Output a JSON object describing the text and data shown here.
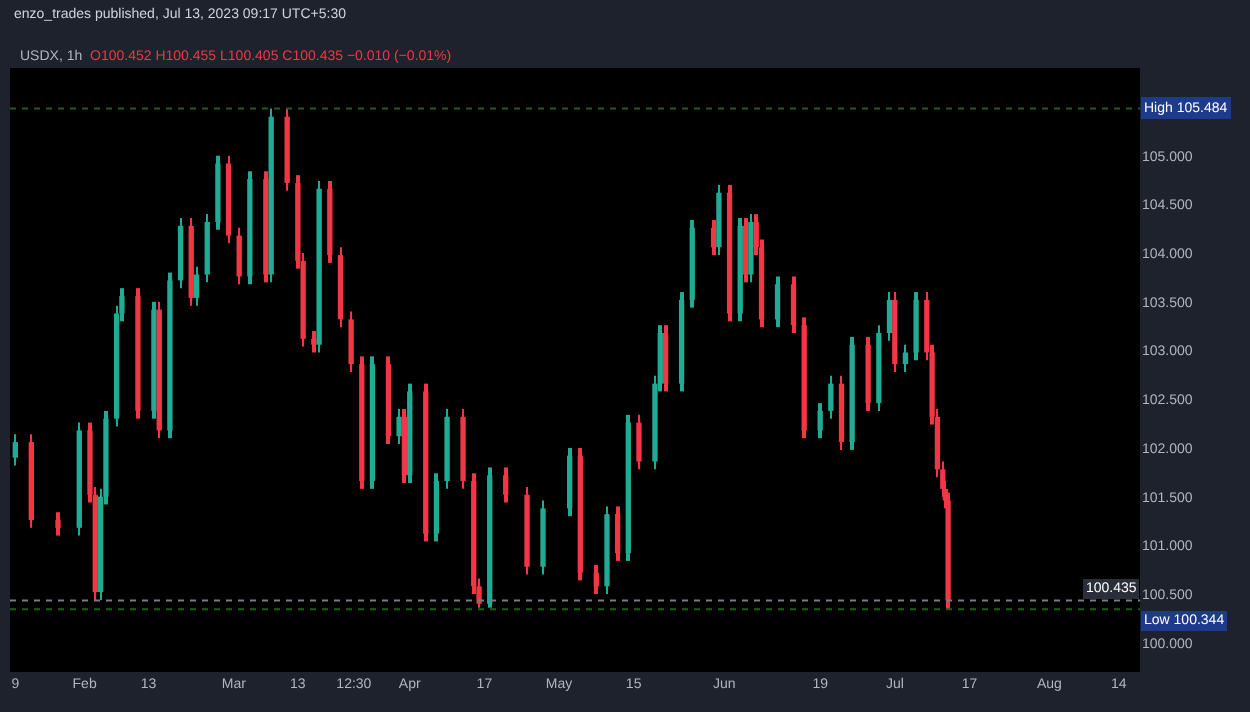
{
  "chart_data": {
    "type": "candlestick",
    "title": "USDX, 1h",
    "subtitle": "O100.452 H100.455 L100.405 C100.435 −0.010 (−0.01%)",
    "annotations": [
      "enzo_trades published, Jul 13, 2023 09:17 UTC+5:30"
    ],
    "x": [
      "2023-01-19",
      "2023-01-22",
      "2023-01-27",
      "2023-01-31",
      "2023-02-02",
      "2023-02-03",
      "2023-02-04",
      "2023-02-05",
      "2023-02-07",
      "2023-02-08",
      "2023-02-11",
      "2023-02-14",
      "2023-02-15",
      "2023-02-17",
      "2023-02-19",
      "2023-02-21",
      "2023-02-22",
      "2023-02-24",
      "2023-02-26",
      "2023-02-28",
      "2023-03-02",
      "2023-03-04",
      "2023-03-07",
      "2023-03-08",
      "2023-03-11",
      "2023-03-13",
      "2023-03-14",
      "2023-03-16",
      "2023-03-17",
      "2023-03-19",
      "2023-03-21",
      "2023-03-23",
      "2023-03-25",
      "2023-03-27",
      "2023-03-30",
      "2023-04-01",
      "2023-04-02",
      "2023-04-03",
      "2023-04-06",
      "2023-04-08",
      "2023-04-10",
      "2023-04-13",
      "2023-04-15",
      "2023-04-16",
      "2023-04-18",
      "2023-04-21",
      "2023-04-25",
      "2023-04-28",
      "2023-05-03",
      "2023-05-05",
      "2023-05-08",
      "2023-05-10",
      "2023-05-12",
      "2023-05-14",
      "2023-05-16",
      "2023-05-19",
      "2023-05-20",
      "2023-05-21",
      "2023-05-24",
      "2023-05-26",
      "2023-05-30",
      "2023-05-31",
      "2023-06-02",
      "2023-06-04",
      "2023-06-05",
      "2023-06-06",
      "2023-06-07",
      "2023-06-08",
      "2023-06-11",
      "2023-06-14",
      "2023-06-16",
      "2023-06-19",
      "2023-06-21",
      "2023-06-23",
      "2023-06-25",
      "2023-06-28",
      "2023-06-30",
      "2023-07-02",
      "2023-07-03",
      "2023-07-05",
      "2023-07-07",
      "2023-07-09",
      "2023-07-10",
      "2023-07-11",
      "2023-07-12",
      "2023-07-12T12:00",
      "2023-07-13"
    ],
    "ohlc": [
      [
        101.9,
        102.14,
        101.82,
        102.06
      ],
      [
        102.06,
        102.14,
        101.18,
        101.26
      ],
      [
        101.26,
        101.34,
        101.1,
        101.18
      ],
      [
        101.18,
        102.26,
        101.1,
        102.18
      ],
      [
        102.18,
        102.26,
        101.44,
        101.52
      ],
      [
        101.52,
        101.6,
        100.44,
        100.52
      ],
      [
        100.52,
        101.58,
        100.44,
        101.5
      ],
      [
        101.5,
        102.38,
        101.42,
        102.3
      ],
      [
        102.3,
        103.46,
        102.22,
        103.38
      ],
      [
        103.38,
        103.64,
        103.3,
        103.56
      ],
      [
        103.56,
        103.64,
        102.3,
        102.38
      ],
      [
        102.38,
        103.5,
        102.3,
        103.42
      ],
      [
        103.42,
        103.5,
        102.1,
        102.18
      ],
      [
        102.18,
        103.8,
        102.1,
        103.72
      ],
      [
        103.72,
        104.36,
        103.64,
        104.28
      ],
      [
        104.28,
        104.36,
        103.46,
        103.54
      ],
      [
        103.54,
        103.86,
        103.46,
        103.78
      ],
      [
        103.78,
        104.4,
        103.7,
        104.32
      ],
      [
        104.32,
        105.0,
        104.24,
        104.92
      ],
      [
        104.92,
        105.0,
        104.1,
        104.18
      ],
      [
        104.18,
        104.26,
        103.68,
        103.76
      ],
      [
        103.76,
        104.84,
        103.68,
        104.76
      ],
      [
        104.76,
        104.84,
        103.7,
        103.78
      ],
      [
        103.78,
        105.484,
        103.7,
        105.4
      ],
      [
        105.4,
        105.48,
        104.64,
        104.72
      ],
      [
        104.72,
        104.8,
        103.84,
        103.92
      ],
      [
        103.92,
        104.0,
        103.04,
        103.12
      ],
      [
        103.12,
        103.2,
        102.98,
        103.06
      ],
      [
        103.06,
        104.74,
        102.98,
        104.66
      ],
      [
        104.66,
        104.74,
        103.9,
        103.98
      ],
      [
        103.98,
        104.06,
        103.24,
        103.32
      ],
      [
        103.32,
        103.4,
        102.78,
        102.86
      ],
      [
        102.86,
        102.94,
        101.58,
        101.66
      ],
      [
        101.66,
        102.94,
        101.58,
        102.86
      ],
      [
        102.86,
        102.94,
        102.04,
        102.12
      ],
      [
        102.12,
        102.4,
        102.04,
        102.32
      ],
      [
        102.32,
        102.4,
        101.64,
        101.72
      ],
      [
        101.72,
        102.66,
        101.64,
        102.58
      ],
      [
        102.58,
        102.66,
        101.04,
        101.12
      ],
      [
        101.12,
        101.74,
        101.04,
        101.66
      ],
      [
        101.66,
        102.4,
        101.58,
        102.32
      ],
      [
        102.32,
        102.4,
        101.58,
        101.66
      ],
      [
        101.66,
        101.74,
        100.5,
        100.58
      ],
      [
        100.58,
        100.66,
        100.36,
        100.4
      ],
      [
        100.4,
        101.8,
        100.36,
        101.72
      ],
      [
        101.72,
        101.8,
        101.44,
        101.52
      ],
      [
        101.52,
        101.6,
        100.7,
        100.78
      ],
      [
        100.78,
        101.46,
        100.7,
        101.38
      ],
      [
        101.38,
        102.0,
        101.3,
        101.92
      ],
      [
        101.92,
        102.0,
        100.64,
        100.72
      ],
      [
        100.72,
        100.8,
        100.5,
        100.58
      ],
      [
        100.58,
        101.4,
        100.5,
        101.32
      ],
      [
        101.32,
        101.4,
        100.84,
        100.92
      ],
      [
        100.92,
        102.34,
        100.84,
        102.26
      ],
      [
        102.26,
        102.34,
        101.78,
        101.86
      ],
      [
        101.86,
        102.74,
        101.78,
        102.66
      ],
      [
        102.66,
        103.26,
        102.58,
        103.18
      ],
      [
        103.18,
        103.26,
        102.58,
        102.66
      ],
      [
        102.66,
        103.6,
        102.58,
        103.52
      ],
      [
        103.52,
        104.34,
        103.44,
        104.26
      ],
      [
        104.26,
        104.34,
        103.98,
        104.06
      ],
      [
        104.06,
        104.7,
        103.98,
        104.62
      ],
      [
        104.62,
        104.7,
        103.3,
        103.38
      ],
      [
        103.38,
        104.36,
        103.3,
        104.28
      ],
      [
        104.28,
        104.36,
        103.7,
        103.78
      ],
      [
        103.78,
        104.4,
        103.7,
        104.32
      ],
      [
        104.32,
        104.4,
        103.98,
        104.06
      ],
      [
        104.06,
        104.14,
        103.24,
        103.32
      ],
      [
        103.32,
        103.76,
        103.24,
        103.68
      ],
      [
        103.68,
        103.76,
        103.18,
        103.26
      ],
      [
        103.26,
        103.34,
        102.1,
        102.18
      ],
      [
        102.18,
        102.46,
        102.1,
        102.38
      ],
      [
        102.38,
        102.74,
        102.3,
        102.66
      ],
      [
        102.66,
        102.74,
        101.98,
        102.06
      ],
      [
        102.06,
        103.14,
        101.98,
        103.06
      ],
      [
        103.06,
        103.14,
        102.38,
        102.46
      ],
      [
        102.46,
        103.26,
        102.38,
        103.18
      ],
      [
        103.18,
        103.6,
        103.1,
        103.52
      ],
      [
        103.52,
        103.6,
        102.78,
        102.86
      ],
      [
        102.86,
        103.06,
        102.78,
        102.98
      ],
      [
        102.98,
        103.6,
        102.9,
        103.52
      ],
      [
        103.52,
        103.6,
        102.9,
        102.98
      ],
      [
        102.98,
        103.06,
        102.24,
        102.32
      ],
      [
        102.32,
        102.4,
        101.7,
        101.78
      ],
      [
        101.78,
        101.86,
        101.5,
        101.58
      ],
      [
        101.58,
        101.66,
        101.38,
        101.46
      ],
      [
        101.46,
        101.54,
        100.344,
        100.435
      ]
    ],
    "xlim": [
      "2023-01-18",
      "2023-08-18"
    ],
    "xticks": [
      {
        "value": "2023-01-19",
        "label": "9"
      },
      {
        "value": "2023-02-01",
        "label": "Feb"
      },
      {
        "value": "2023-02-13",
        "label": "13"
      },
      {
        "value": "2023-03-01",
        "label": "Mar"
      },
      {
        "value": "2023-03-13",
        "label": "13"
      },
      {
        "value": "2023-03-23T12:30",
        "label": "12:30"
      },
      {
        "value": "2023-04-03",
        "label": "Apr"
      },
      {
        "value": "2023-04-17",
        "label": "17"
      },
      {
        "value": "2023-05-01",
        "label": "May"
      },
      {
        "value": "2023-05-15",
        "label": "15"
      },
      {
        "value": "2023-06-01",
        "label": "Jun"
      },
      {
        "value": "2023-06-19",
        "label": "19"
      },
      {
        "value": "2023-07-03",
        "label": "Jul"
      },
      {
        "value": "2023-07-17",
        "label": "17"
      },
      {
        "value": "2023-08-01",
        "label": "Aug"
      },
      {
        "value": "2023-08-14",
        "label": "14"
      }
    ],
    "ylim": [
      99.7,
      105.9
    ],
    "yticks": [
      {
        "value": 100,
        "label": "100.000"
      },
      {
        "value": 100.5,
        "label": "100.500"
      },
      {
        "value": 101,
        "label": "101.000"
      },
      {
        "value": 101.5,
        "label": "101.500"
      },
      {
        "value": 102,
        "label": "102.000"
      },
      {
        "value": 102.5,
        "label": "102.500"
      },
      {
        "value": 103,
        "label": "103.000"
      },
      {
        "value": 103.5,
        "label": "103.500"
      },
      {
        "value": 104,
        "label": "104.000"
      },
      {
        "value": 104.5,
        "label": "104.500"
      },
      {
        "value": 105,
        "label": "105.000"
      }
    ],
    "ref_lines": [
      {
        "axis": "y",
        "value": 105.484,
        "label": "High 105.484",
        "color": "#1b5e20",
        "line_style": "dotted"
      },
      {
        "axis": "y",
        "value": 100.344,
        "label": "Low 100.344",
        "color": "#1b5e20",
        "line_style": "dotted"
      },
      {
        "axis": "y",
        "value": 100.435,
        "label": "100.435",
        "color": "#787b86",
        "line_style": "dotted"
      }
    ],
    "grid": false
  }
}
